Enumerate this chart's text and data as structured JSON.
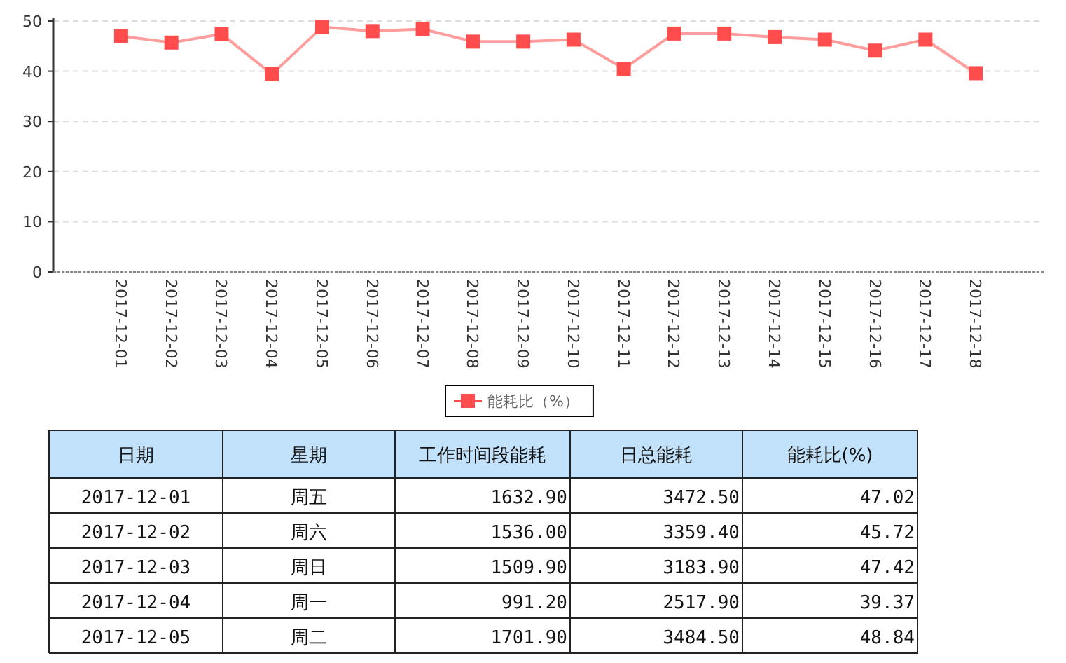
{
  "chart_data": {
    "type": "line",
    "categories": [
      "2017-12-01",
      "2017-12-02",
      "2017-12-03",
      "2017-12-04",
      "2017-12-05",
      "2017-12-06",
      "2017-12-07",
      "2017-12-08",
      "2017-12-09",
      "2017-12-10",
      "2017-12-11",
      "2017-12-12",
      "2017-12-13",
      "2017-12-14",
      "2017-12-15",
      "2017-12-16",
      "2017-12-17",
      "2017-12-18"
    ],
    "series": [
      {
        "name": "能耗比（%）",
        "color": "#ff4d4d",
        "values": [
          47.0,
          45.7,
          47.4,
          39.4,
          48.8,
          48.0,
          48.4,
          45.9,
          45.9,
          46.3,
          40.5,
          47.5,
          47.5,
          46.8,
          46.3,
          44.1,
          46.3,
          39.6
        ]
      }
    ],
    "ylim": [
      0,
      50
    ],
    "yticks": [
      0,
      10,
      20,
      30,
      40,
      50
    ],
    "grid": "y",
    "legend": "bottom",
    "marker": "square",
    "line_style": "solid",
    "annotations": [
      "日期",
      "星期",
      "工作时间段能耗",
      "日总能耗",
      "能耗比(%)",
      "2017-12-01",
      "周五",
      "1632.90",
      "3472.50",
      "47.02",
      "2017-12-02",
      "周六",
      "1536.00",
      "3359.40",
      "45.72",
      "2017-12-03",
      "周日",
      "1509.90",
      "3183.90",
      "47.42",
      "2017-12-04",
      "周一",
      "991.20",
      "2517.90",
      "39.37",
      "2017-12-05",
      "周二",
      "1701.90",
      "3484.50",
      "48.84"
    ]
  }
}
